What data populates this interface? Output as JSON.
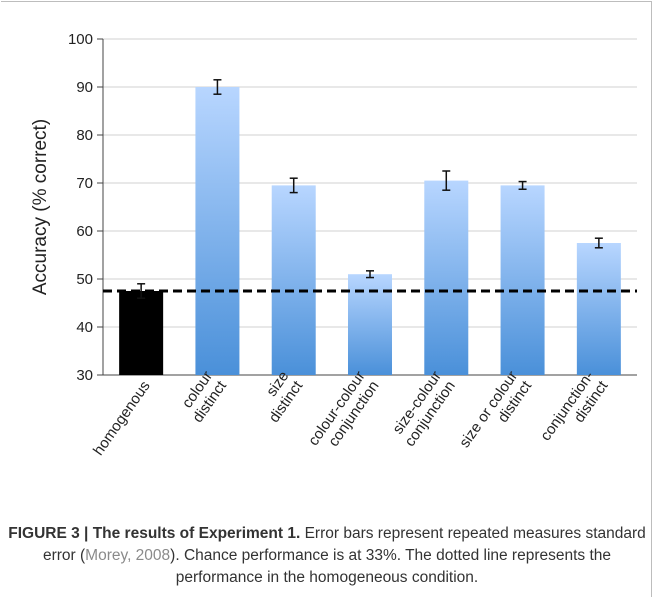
{
  "chart_data": {
    "type": "bar",
    "ylabel": "Accuracy (% correct)",
    "ylim": [
      30,
      100
    ],
    "yticks": [
      30,
      40,
      50,
      60,
      70,
      80,
      90,
      100
    ],
    "grid": true,
    "categories": [
      "homogenous",
      "colour distinct",
      "size distinct",
      "colour-colour conjunction",
      "size-colour conjunction",
      "size or colour distinct",
      "conjunction-distinct"
    ],
    "category_lines": [
      [
        "homogenous"
      ],
      [
        "colour",
        "distinct"
      ],
      [
        "size",
        "distinct"
      ],
      [
        "colour-colour",
        "conjunction"
      ],
      [
        "size-colour",
        "conjunction"
      ],
      [
        "size or colour",
        "distinct"
      ],
      [
        "conjunction-",
        "distinct"
      ]
    ],
    "values": [
      47.5,
      90,
      69.5,
      51,
      70.5,
      69.5,
      57.5
    ],
    "errors": [
      1.5,
      1.5,
      1.5,
      0.7,
      2.0,
      0.8,
      1.0
    ],
    "reference_line": {
      "value": 47.5,
      "style": "dashed"
    },
    "colors": {
      "homogenous_bar": "#000000",
      "bar_top": "#b8d6ff",
      "bar_bottom": "#4a90d9",
      "grid": "#d0d0d0",
      "reference_line": "#000000"
    }
  },
  "caption": {
    "figure_label": "FIGURE 3 |",
    "title": "The results of Experiment 1.",
    "text1": " Error bars represent repeated measures standard error (",
    "ref": "Morey, 2008",
    "text2": "). Chance performance is at 33%. The dotted line represents the performance in the homogeneous condition."
  }
}
